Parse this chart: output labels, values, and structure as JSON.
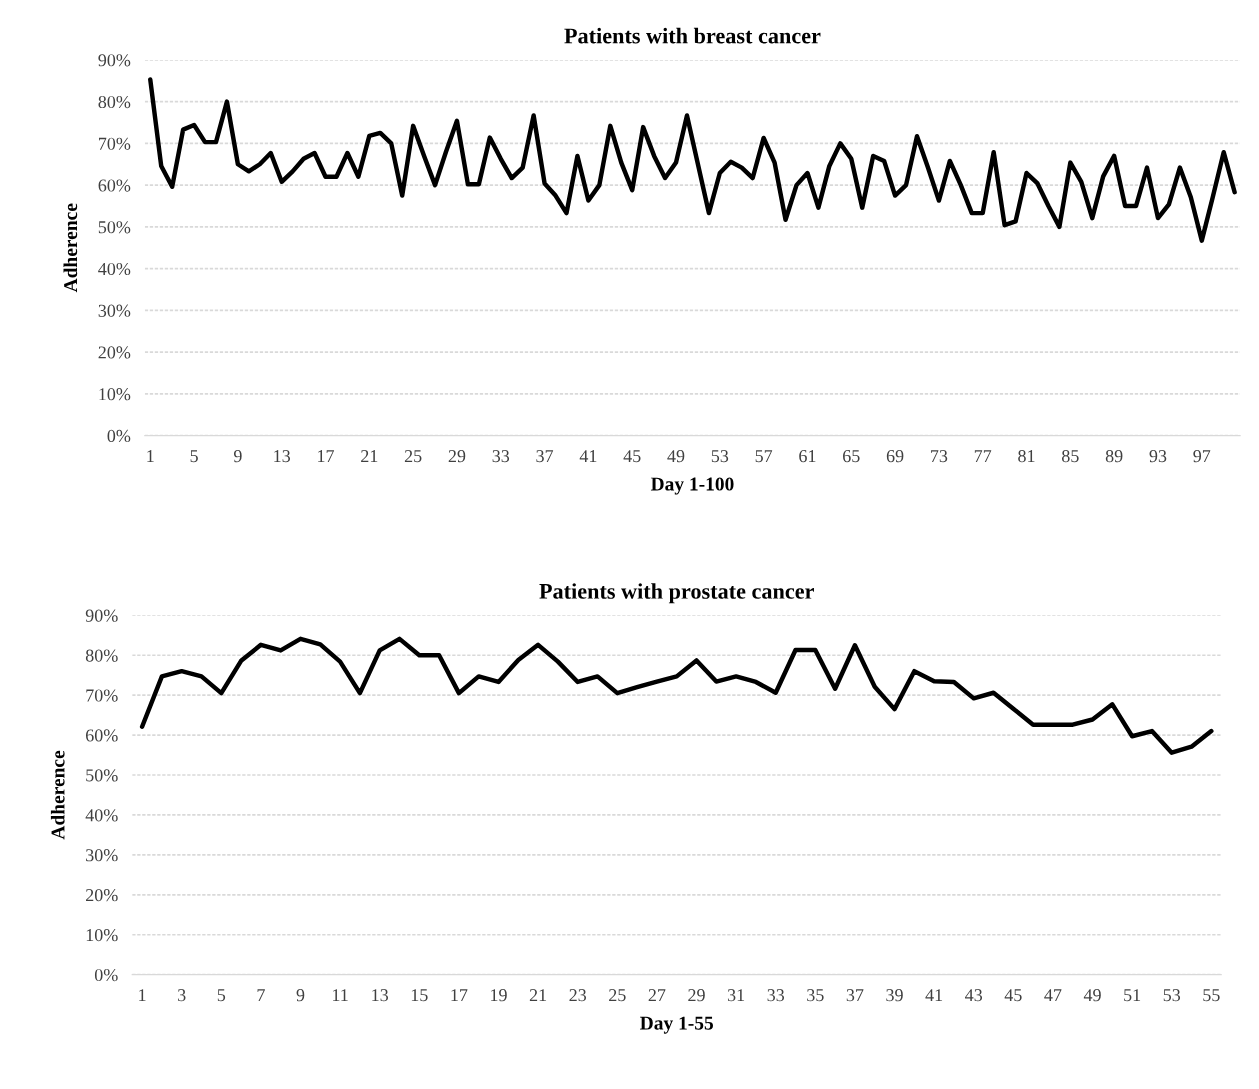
{
  "chart_data": [
    {
      "type": "line",
      "title": "Patients with breast cancer",
      "xlabel": "Day 1-100",
      "ylabel": "Adherence",
      "categories": [
        "1",
        null,
        null,
        null,
        "5",
        null,
        null,
        null,
        "9",
        null,
        null,
        null,
        "13",
        null,
        null,
        null,
        "17",
        null,
        null,
        null,
        "21",
        null,
        null,
        null,
        "25",
        null,
        null,
        null,
        "29",
        null,
        null,
        null,
        "33",
        null,
        null,
        null,
        "37",
        null,
        null,
        null,
        "41",
        null,
        null,
        null,
        "45",
        null,
        null,
        null,
        "49",
        null,
        null,
        null,
        "53",
        null,
        null,
        null,
        "57",
        null,
        null,
        null,
        "61",
        null,
        null,
        null,
        "65",
        null,
        null,
        null,
        "69",
        null,
        null,
        null,
        "73",
        null,
        null,
        null,
        "77",
        null,
        null,
        null,
        "81",
        null,
        null,
        null,
        "85",
        null,
        null,
        null,
        "89",
        null,
        null,
        null,
        "93",
        null,
        null,
        null,
        "97",
        null,
        null,
        null
      ],
      "series": [
        {
          "color": "#000000",
          "values": [
            85.3,
            64.6,
            59.6,
            73.3,
            74.4,
            70.3,
            70.3,
            80,
            65,
            63.3,
            65,
            67.7,
            60.8,
            63.3,
            66.3,
            67.7,
            62,
            62,
            67.7,
            62,
            71.8,
            72.5,
            70,
            57.5,
            74.2,
            67,
            60,
            68,
            75.4,
            60.2,
            60.2,
            71.4,
            66.3,
            61.7,
            64.2,
            76.7,
            60.4,
            57.5,
            53.3,
            67,
            56.3,
            60,
            74.2,
            65.4,
            58.8,
            73.9,
            67,
            61.7,
            65.4,
            76.7,
            65,
            53.3,
            62.9,
            65.6,
            64.2,
            61.7,
            71.3,
            65.4,
            51.7,
            60,
            62.9,
            54.6,
            64.6,
            70,
            66.3,
            54.6,
            67,
            65.8,
            57.5,
            60,
            71.7,
            64.2,
            56.3,
            65.8,
            60,
            53.3,
            53.3,
            67.9,
            50.4,
            51.3,
            62.9,
            60.4,
            55,
            50,
            65.4,
            60.8,
            52.1,
            62.1,
            67,
            55,
            55,
            64.2,
            52.1,
            55.4,
            64.2,
            57.1,
            46.7,
            57.1,
            67.9,
            58.3
          ]
        }
      ],
      "ylim": [
        0,
        90
      ],
      "yticks": [
        {
          "value": 0,
          "label": "0%"
        },
        {
          "value": 10,
          "label": "10%"
        },
        {
          "value": 20,
          "label": "20%"
        },
        {
          "value": 30,
          "label": "30%"
        },
        {
          "value": 40,
          "label": "40%"
        },
        {
          "value": 50,
          "label": "50%"
        },
        {
          "value": 60,
          "label": "60%"
        },
        {
          "value": 70,
          "label": "70%"
        },
        {
          "value": 80,
          "label": "80%"
        },
        {
          "value": 90,
          "label": "90%"
        }
      ],
      "grid": "y",
      "line_style": "solid"
    },
    {
      "type": "line",
      "title": "Patients with prostate cancer",
      "xlabel": "Day 1-55",
      "ylabel": "Adherence",
      "categories": [
        "1",
        null,
        "3",
        null,
        "5",
        null,
        "7",
        null,
        "9",
        null,
        "11",
        null,
        "13",
        null,
        "15",
        null,
        "17",
        null,
        "19",
        null,
        "21",
        null,
        "23",
        null,
        "25",
        null,
        "27",
        null,
        "29",
        null,
        "31",
        null,
        "33",
        null,
        "35",
        null,
        "37",
        null,
        "39",
        null,
        "41",
        null,
        "43",
        null,
        "45",
        null,
        "47",
        null,
        "49",
        null,
        "51",
        null,
        "53",
        null,
        "55"
      ],
      "series": [
        {
          "color": "#000000",
          "values": [
            62.1,
            74.7,
            76,
            74.7,
            70.5,
            78.6,
            82.6,
            81.2,
            84.1,
            82.7,
            78.4,
            70.5,
            81.2,
            84.1,
            80,
            80,
            70.5,
            74.7,
            73.3,
            78.8,
            82.6,
            78.4,
            73.3,
            74.7,
            70.5,
            72,
            73.4,
            74.7,
            78.7,
            73.4,
            74.7,
            73.3,
            70.6,
            81.3,
            81.3,
            71.6,
            82.5,
            72.1,
            66.5,
            76,
            73.5,
            73.3,
            69.2,
            70.6,
            66.6,
            62.6,
            62.6,
            62.6,
            63.9,
            67.7,
            59.7,
            61,
            55.6,
            57.1,
            61
          ]
        }
      ],
      "ylim": [
        0,
        90
      ],
      "yticks": [
        {
          "value": 0,
          "label": "0%"
        },
        {
          "value": 10,
          "label": "10%"
        },
        {
          "value": 20,
          "label": "20%"
        },
        {
          "value": 30,
          "label": "30%"
        },
        {
          "value": 40,
          "label": "40%"
        },
        {
          "value": 50,
          "label": "50%"
        },
        {
          "value": 60,
          "label": "60%"
        },
        {
          "value": 70,
          "label": "70%"
        },
        {
          "value": 80,
          "label": "80%"
        },
        {
          "value": 90,
          "label": "90%"
        }
      ],
      "grid": "y",
      "line_style": "solid"
    }
  ]
}
